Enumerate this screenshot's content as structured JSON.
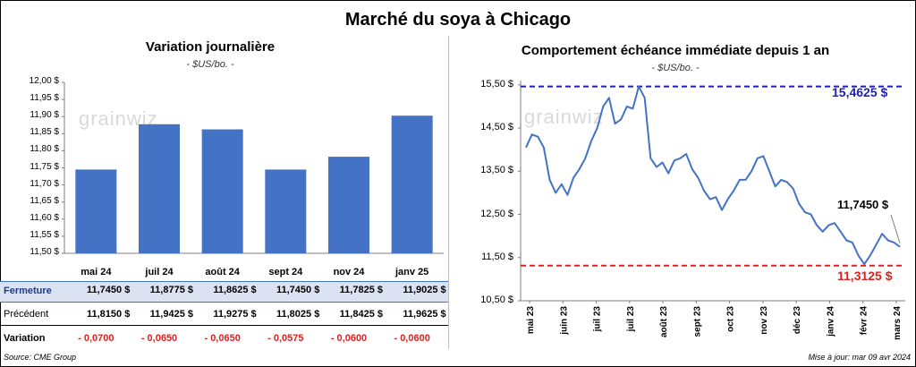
{
  "title": "Marché du soya à Chicago",
  "watermark": "grainwiz",
  "left": {
    "title": "Variation journalière",
    "unit": "- $US/bo. -",
    "table": {
      "rows": [
        {
          "label": "Fermeture",
          "values": [
            "11,7450  $",
            "11,8775  $",
            "11,8625  $",
            "11,7450  $",
            "11,7825  $",
            "11,9025  $"
          ]
        },
        {
          "label": "Précédent",
          "values": [
            "11,8150  $",
            "11,9425  $",
            "11,9275  $",
            "11,8025  $",
            "11,8425  $",
            "11,9625  $"
          ]
        },
        {
          "label": "Variation",
          "values": [
            "- 0,0700",
            "- 0,0650",
            "- 0,0650",
            "- 0,0575",
            "- 0,0600",
            "- 0,0600"
          ]
        }
      ]
    }
  },
  "right": {
    "title": "Comportement  échéance immédiate depuis 1 an",
    "unit": "- $US/bo. -",
    "max_label": "15,4625 $",
    "min_label": "11,3125 $",
    "last_label": "11,7450 $"
  },
  "footer": {
    "source": "Source: CME Group",
    "updated": "Mise à jour: mar 09 avr 2024"
  },
  "colors": {
    "bar": "#4472c4",
    "line": "#4472c4",
    "max_line": "#1f1fb4",
    "min_line": "#e02020",
    "negative": "#e02020",
    "header_row": "#dbe3f3"
  },
  "chart_data": [
    {
      "type": "bar",
      "title": "Variation journalière",
      "categories": [
        "mai 24",
        "juil 24",
        "août 24",
        "sept 24",
        "nov 24",
        "janv 25"
      ],
      "values": [
        11.745,
        11.8775,
        11.8625,
        11.745,
        11.7825,
        11.9025
      ],
      "ylim": [
        11.5,
        12.0
      ],
      "yticks": [
        "11,50 $",
        "11,55 $",
        "11,60 $",
        "11,65 $",
        "11,70 $",
        "11,75 $",
        "11,80 $",
        "11,85 $",
        "11,90 $",
        "11,95 $",
        "12,00 $"
      ],
      "grid": false
    },
    {
      "type": "line",
      "title": "Comportement  échéance immédiate depuis 1 an",
      "x_labels": [
        "mai 23",
        "juin 23",
        "juil 23",
        "juil 23",
        "août 23",
        "sept 23",
        "oct 23",
        "nov 23",
        "déc 23",
        "janv 24",
        "févr 24",
        "mars 24"
      ],
      "ylim": [
        10.5,
        15.6
      ],
      "yticks": [
        "10,50 $",
        "11,50 $",
        "12,50 $",
        "13,50 $",
        "14,50 $",
        "15,50 $"
      ],
      "max": 15.4625,
      "min": 11.3125,
      "last": 11.745,
      "series": [
        {
          "values": [
            14.05,
            14.35,
            14.3,
            14.05,
            13.3,
            13.0,
            13.2,
            12.95,
            13.35,
            13.55,
            13.8,
            14.2,
            14.5,
            15.0,
            15.2,
            14.6,
            14.7,
            15.0,
            14.95,
            15.4625,
            15.2,
            13.8,
            13.6,
            13.7,
            13.45,
            13.75,
            13.8,
            13.9,
            13.55,
            13.35,
            13.05,
            12.85,
            12.9,
            12.6,
            12.85,
            13.05,
            13.3,
            13.3,
            13.5,
            13.8,
            13.85,
            13.5,
            13.15,
            13.3,
            13.25,
            13.1,
            12.75,
            12.55,
            12.5,
            12.25,
            12.1,
            12.25,
            12.3,
            12.1,
            11.9,
            11.85,
            11.55,
            11.35,
            11.55,
            11.8,
            12.05,
            11.9,
            11.85,
            11.75
          ]
        }
      ],
      "grid": false
    }
  ]
}
